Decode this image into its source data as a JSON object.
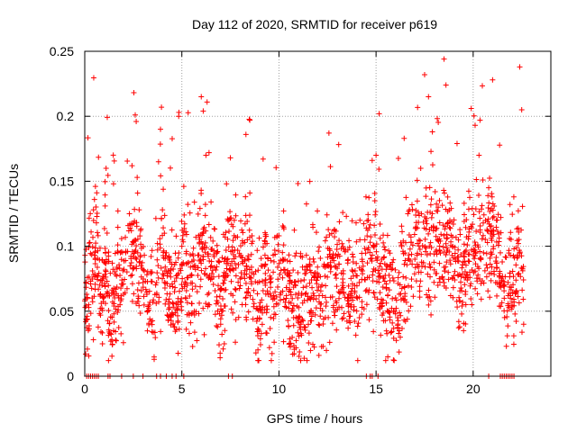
{
  "chart_data": {
    "type": "scatter",
    "title": "Day 112 of 2020, SRMTID for receiver p619",
    "xlabel": "GPS time / hours",
    "ylabel": "SRMTID / TECUs",
    "xlim": [
      0,
      24
    ],
    "ylim": [
      0,
      0.25
    ],
    "xticks": [
      0,
      5,
      10,
      15,
      20
    ],
    "xtick_labels": [
      "0",
      "5",
      "10",
      "15",
      "20"
    ],
    "yticks": [
      0,
      0.05,
      0.1,
      0.15,
      0.2,
      0.25
    ],
    "ytick_labels": [
      "0",
      "0.05",
      "0.1",
      "0.15",
      "0.2",
      "0.25"
    ],
    "grid": true,
    "marker": "+",
    "marker_color": "#ff0000",
    "series": [
      {
        "name": "SRMTID",
        "note": "Approximately 2300 dense points; representative subset listed",
        "points": [
          [
            0.0,
            0.058
          ],
          [
            0.05,
            0.042
          ],
          [
            0.1,
            0.063
          ],
          [
            0.2,
            0.055
          ],
          [
            0.3,
            0.071
          ],
          [
            0.4,
            0.081
          ],
          [
            0.45,
            0.128
          ],
          [
            0.5,
            0.136
          ],
          [
            0.55,
            0.146
          ],
          [
            0.6,
            0.118
          ],
          [
            0.7,
            0.067
          ],
          [
            0.8,
            0.052
          ],
          [
            0.9,
            0.074
          ],
          [
            1.0,
            0.088
          ],
          [
            1.05,
            0.131
          ],
          [
            1.1,
            0.16
          ],
          [
            1.2,
            0.062
          ],
          [
            1.3,
            0.033
          ],
          [
            1.4,
            0.028
          ],
          [
            1.5,
            0.048
          ],
          [
            1.6,
            0.067
          ],
          [
            1.7,
            0.101
          ],
          [
            1.8,
            0.083
          ],
          [
            1.9,
            0.071
          ],
          [
            2.0,
            0.063
          ],
          [
            2.1,
            0.089
          ],
          [
            2.2,
            0.096
          ],
          [
            2.3,
            0.125
          ],
          [
            2.4,
            0.112
          ],
          [
            2.5,
            0.103
          ],
          [
            2.6,
            0.201
          ],
          [
            2.65,
            0.196
          ],
          [
            2.7,
            0.153
          ],
          [
            2.8,
            0.128
          ],
          [
            2.9,
            0.085
          ],
          [
            3.0,
            0.072
          ],
          [
            3.2,
            0.063
          ],
          [
            3.5,
            0.057
          ],
          [
            3.7,
            0.072
          ],
          [
            3.8,
            0.165
          ],
          [
            3.9,
            0.19
          ],
          [
            3.95,
            0.207
          ],
          [
            4.0,
            0.128
          ],
          [
            4.1,
            0.11
          ],
          [
            4.2,
            0.095
          ],
          [
            4.3,
            0.081
          ],
          [
            4.5,
            0.071
          ],
          [
            4.6,
            0.038
          ],
          [
            4.8,
            0.055
          ],
          [
            5.0,
            0.1
          ],
          [
            5.1,
            0.146
          ],
          [
            5.3,
            0.087
          ],
          [
            5.5,
            0.078
          ],
          [
            5.7,
            0.085
          ],
          [
            5.9,
            0.102
          ],
          [
            6.0,
            0.215
          ],
          [
            6.1,
            0.204
          ],
          [
            6.3,
            0.211
          ],
          [
            6.4,
            0.172
          ],
          [
            6.6,
            0.104
          ],
          [
            6.8,
            0.061
          ],
          [
            7.0,
            0.04
          ],
          [
            7.2,
            0.074
          ],
          [
            7.3,
            0.148
          ],
          [
            7.5,
            0.168
          ],
          [
            7.7,
            0.12
          ],
          [
            8.0,
            0.075
          ],
          [
            8.3,
            0.186
          ],
          [
            8.5,
            0.197
          ],
          [
            8.7,
            0.066
          ],
          [
            9.0,
            0.044
          ],
          [
            9.3,
            0.079
          ],
          [
            9.6,
            0.061
          ],
          [
            10.0,
            0.108
          ],
          [
            10.2,
            0.09
          ],
          [
            10.5,
            0.077
          ],
          [
            10.7,
            0.052
          ],
          [
            11.0,
            0.041
          ],
          [
            11.3,
            0.038
          ],
          [
            11.6,
            0.06
          ],
          [
            12.0,
            0.076
          ],
          [
            12.3,
            0.044
          ],
          [
            12.6,
            0.098
          ],
          [
            13.0,
            0.083
          ],
          [
            13.3,
            0.072
          ],
          [
            13.6,
            0.063
          ],
          [
            14.0,
            0.061
          ],
          [
            14.3,
            0.081
          ],
          [
            14.6,
            0.12
          ],
          [
            14.8,
            0.166
          ],
          [
            15.0,
            0.17
          ],
          [
            15.3,
            0.09
          ],
          [
            15.6,
            0.062
          ],
          [
            15.9,
            0.05
          ],
          [
            16.2,
            0.035
          ],
          [
            16.5,
            0.089
          ],
          [
            16.8,
            0.103
          ],
          [
            17.0,
            0.09
          ],
          [
            17.3,
            0.16
          ],
          [
            17.5,
            0.232
          ],
          [
            17.7,
            0.215
          ],
          [
            17.9,
            0.188
          ],
          [
            18.2,
            0.13
          ],
          [
            18.5,
            0.244
          ],
          [
            18.6,
            0.224
          ],
          [
            18.8,
            0.12
          ],
          [
            19.0,
            0.091
          ],
          [
            19.3,
            0.058
          ],
          [
            19.6,
            0.063
          ],
          [
            19.9,
            0.206
          ],
          [
            20.1,
            0.193
          ],
          [
            20.3,
            0.17
          ],
          [
            20.5,
            0.151
          ],
          [
            20.8,
            0.145
          ],
          [
            21.0,
            0.228
          ],
          [
            21.2,
            0.12
          ],
          [
            21.4,
            0.095
          ],
          [
            21.6,
            0.06
          ],
          [
            21.8,
            0.062
          ],
          [
            22.0,
            0.057
          ],
          [
            22.2,
            0.065
          ],
          [
            22.4,
            0.238
          ],
          [
            22.5,
            0.205
          ],
          [
            22.6,
            0.04
          ]
        ],
        "zero_points_x": [
          0.1,
          0.2,
          0.3,
          0.4,
          0.5,
          0.6,
          0.7,
          1.2,
          1.3,
          1.9,
          2.5,
          3.0,
          3.7,
          3.9,
          4.2,
          4.5,
          4.7,
          5.1,
          7.4,
          7.6,
          14.5,
          14.7,
          14.8,
          15.1,
          20.8,
          21.4,
          21.5,
          21.6,
          21.7,
          21.8,
          21.9,
          22.0,
          22.1
        ]
      }
    ]
  }
}
